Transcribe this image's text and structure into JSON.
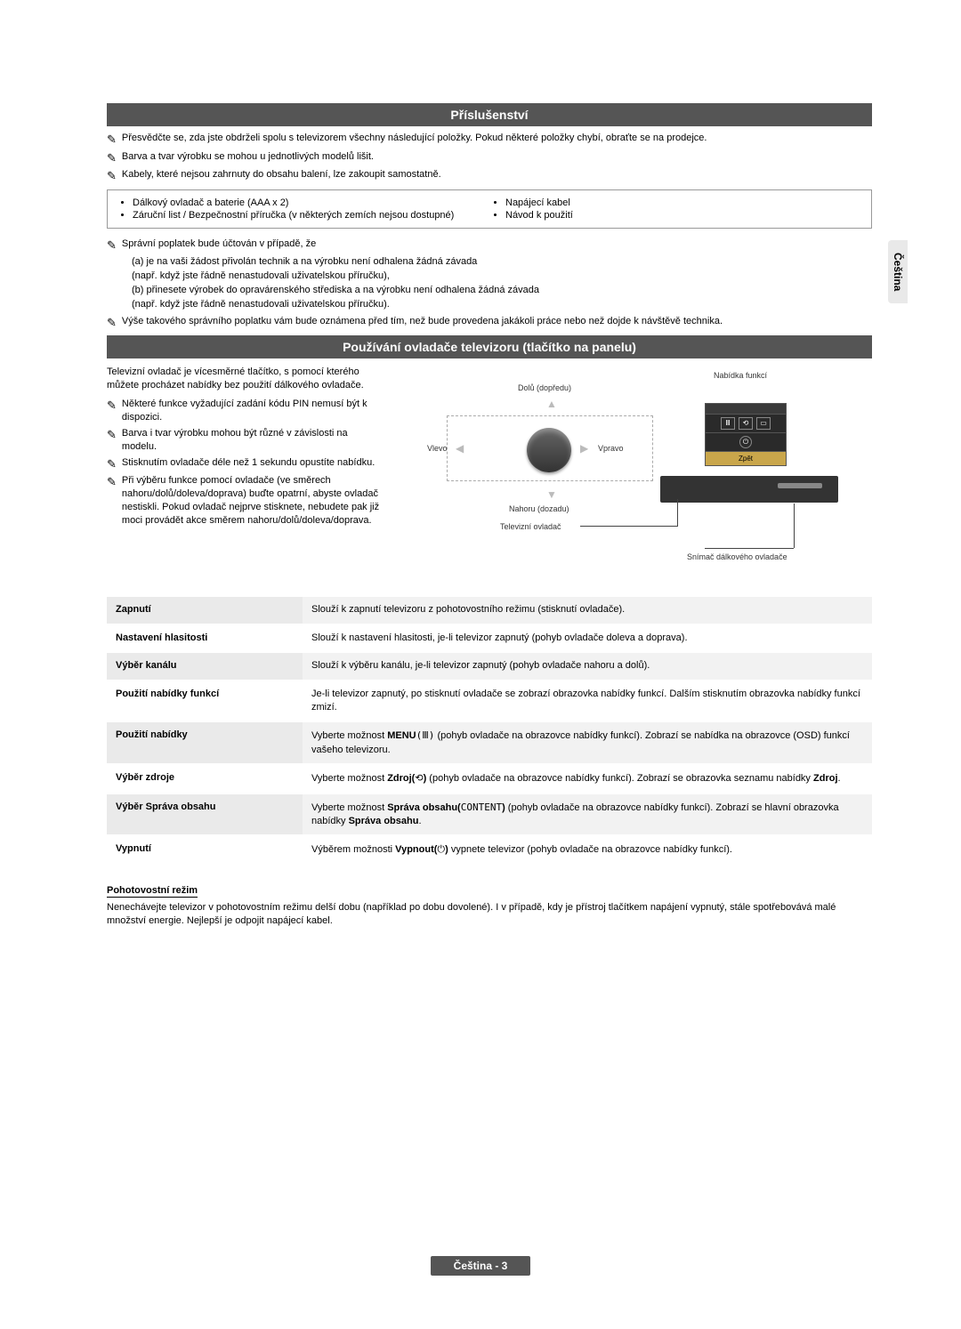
{
  "side_tab": "Čeština",
  "accessories": {
    "header": "Příslušenství",
    "notes": [
      "Přesvědčte se, zda jste obdrželi spolu s televizorem všechny následující položky. Pokud některé položky chybí, obraťte se na prodejce.",
      "Barva a tvar výrobku se mohou u jednotlivých modelů lišit.",
      "Kabely, které nejsou zahrnuty do obsahu balení, lze zakoupit samostatně."
    ],
    "items_left": [
      "Dálkový ovladač a baterie (AAA x 2)",
      "Záruční list / Bezpečnostní příručka (v některých zemích nejsou dostupné)"
    ],
    "items_right": [
      "Napájecí kabel",
      "Návod k použití"
    ],
    "fee_intro": "Správní poplatek bude účtován v případě, že",
    "fee_lines": [
      "(a) je na vaši žádost přivolán technik a na výrobku není odhalena žádná závada",
      "(např. když jste řádně nenastudovali uživatelskou příručku),",
      "(b) přinesete výrobek do opravárenského střediska a na výrobku není odhalena žádná závada",
      "(např. když jste řádně nenastudovali uživatelskou příručku)."
    ],
    "fee_note": "Výše takového správního poplatku vám bude oznámena před tím, než bude provedena jakákoli práce nebo než dojde k návštěvě technika."
  },
  "controller": {
    "header": "Používání ovladače televizoru (tlačítko na panelu)",
    "intro": "Televizní ovladač je vícesměrné tlačítko, s pomocí kterého můžete procházet nabídky bez použití dálkového ovladače.",
    "notes": [
      "Některé funkce vyžadující zadání kódu PIN nemusí být k dispozici.",
      "Barva i tvar výrobku mohou být různé v závislosti na modelu.",
      "Stisknutím ovladače déle než 1 sekundu opustíte nabídku.",
      "Při výběru funkce pomocí ovladače (ve směrech nahoru/dolů/doleva/doprava) buďte opatrní, abyste ovladač nestiskli. Pokud ovladač nejprve stisknete, nebudete pak již moci provádět akce směrem nahoru/dolů/doleva/doprava."
    ],
    "diagram": {
      "up": "Dolů (dopředu)",
      "down": "Nahoru (dozadu)",
      "left": "Vlevo",
      "right": "Vpravo",
      "tv_controller": "Televizní ovladač",
      "func_menu_label": "Nabídka funkcí",
      "sensor": "Snímač dálkového ovladače",
      "zpet": "Zpět",
      "colors": {
        "menu_bg": "#2a2a2a",
        "menu_border": "#555555",
        "zpet_bg": "#c9a64b",
        "tv_strip": "#333333",
        "dashed": "#aaaaaa"
      }
    },
    "table": [
      {
        "label": "Zapnutí",
        "desc": "Slouží k zapnutí televizoru z pohotovostního režimu (stisknutí ovladače)."
      },
      {
        "label": "Nastavení hlasitosti",
        "desc": "Slouží k nastavení hlasitosti, je-li televizor zapnutý (pohyb ovladače doleva a doprava)."
      },
      {
        "label": "Výběr kanálu",
        "desc": "Slouží k výběru kanálu, je-li televizor zapnutý (pohyb ovladače nahoru a dolů)."
      },
      {
        "label": "Použití nabídky funkcí",
        "desc": "Je-li televizor zapnutý, po stisknutí ovladače se zobrazí obrazovka nabídky funkcí. Dalším stisknutím obrazovka nabídky funkcí zmizí."
      },
      {
        "label": "Použití nabídky",
        "desc_pre": "Vyberte možnost ",
        "bold1": "MENU",
        "sym1": "(Ⅲ)",
        "desc_mid": " (pohyb ovladače na obrazovce nabídky funkcí). Zobrazí se nabídka na obrazovce (OSD) funkcí vašeho televizoru."
      },
      {
        "label": "Výběr zdroje",
        "desc_pre": "Vyberte možnost ",
        "bold1": "Zdroj(",
        "sym1": "⟲",
        "bold2": ")",
        "desc_mid": " (pohyb ovladače na obrazovce nabídky funkcí). Zobrazí se obrazovka seznamu nabídky ",
        "bold3": "Zdroj",
        "desc_end": "."
      },
      {
        "label": "Výběr Správa obsahu",
        "desc_pre": "Vyberte možnost ",
        "bold1": "Správa obsahu(",
        "sym1": "CONTENT",
        "bold2": ")",
        "desc_mid": " (pohyb ovladače na obrazovce nabídky funkcí). Zobrazí se hlavní obrazovka nabídky ",
        "bold3": "Správa obsahu",
        "desc_end": "."
      },
      {
        "label": "Vypnutí",
        "desc_pre": "Výběrem možnosti ",
        "bold1": "Vypnout(",
        "sym1": "⏻",
        "bold2": ")",
        "desc_mid": " vypnete televizor (pohyb ovladače na obrazovce nabídky funkcí)."
      }
    ],
    "standby_h": "Pohotovostní režim",
    "standby_p": "Nenechávejte televizor v pohotovostním režimu delší dobu (například po dobu dovolené). I v případě, kdy je přístroj tlačítkem napájení vypnutý, stále spotřebovává malé množství energie. Nejlepší je odpojit napájecí kabel."
  },
  "footer": "Čeština - 3"
}
